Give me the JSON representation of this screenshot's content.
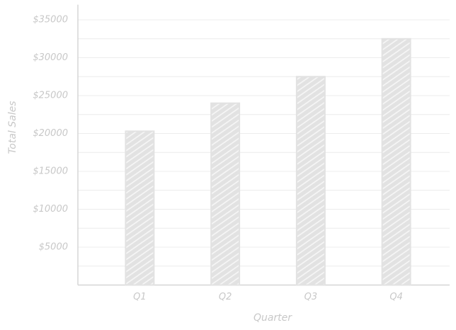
{
  "chart_data": {
    "type": "bar",
    "x_label": "Quarter",
    "y_label": "Total Sales",
    "categories": [
      "Q1",
      "Q2",
      "Q3",
      "Q4"
    ],
    "values": [
      20300,
      24000,
      27500,
      32500
    ],
    "color": "#e2e2e2",
    "ylim": [
      0,
      37000
    ],
    "yticks": [
      {
        "value": 5000,
        "label": "$5000"
      },
      {
        "value": 10000,
        "label": "$10000"
      },
      {
        "value": 15000,
        "label": "$15000"
      },
      {
        "value": 20000,
        "label": "$20000"
      },
      {
        "value": 25000,
        "label": "$25000"
      },
      {
        "value": 30000,
        "label": "$30000"
      },
      {
        "value": 35000,
        "label": "$35000"
      }
    ],
    "minor_yticks": [
      2500,
      7500,
      12500,
      17500,
      22500,
      27500,
      32500
    ],
    "grid": true
  }
}
